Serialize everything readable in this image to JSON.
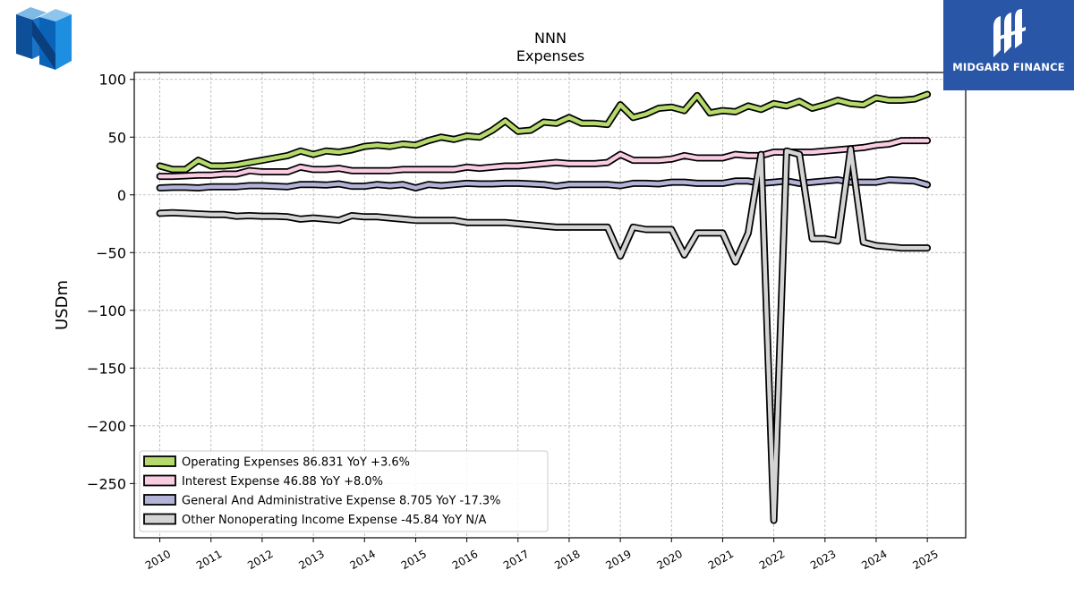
{
  "logos": {
    "left": {
      "icon": "nnn-cube-logo-icon"
    },
    "right": {
      "text": "MIDGARD FINANCE",
      "icon": "midgard-emblem-icon",
      "background": "#2a56a8"
    }
  },
  "chart_data": {
    "type": "line",
    "title": "NNN",
    "subtitle": "Expenses",
    "xlabel": "",
    "ylabel": "USDm",
    "xlim": [
      2009.5,
      2025.75
    ],
    "ylim": [
      -297,
      106
    ],
    "x_ticks": [
      "2010",
      "2011",
      "2012",
      "2013",
      "2014",
      "2015",
      "2016",
      "2017",
      "2018",
      "2019",
      "2020",
      "2021",
      "2022",
      "2023",
      "2024",
      "2025"
    ],
    "y_ticks": [
      {
        "value": 100,
        "label": "100"
      },
      {
        "value": 50,
        "label": "50"
      },
      {
        "value": 0,
        "label": "0"
      },
      {
        "value": -50,
        "label": "−50"
      },
      {
        "value": -100,
        "label": "−100"
      },
      {
        "value": -150,
        "label": "−150"
      },
      {
        "value": -200,
        "label": "−200"
      },
      {
        "value": -250,
        "label": "−250"
      }
    ],
    "grid": true,
    "legend_position": "lower-left",
    "series": [
      {
        "name": "Operating Expenses  86.831 YoY +3.6%",
        "color": "#b5d96b",
        "points": [
          [
            2010.0,
            25
          ],
          [
            2010.25,
            22
          ],
          [
            2010.5,
            22
          ],
          [
            2010.75,
            30
          ],
          [
            2011.0,
            25
          ],
          [
            2011.25,
            25
          ],
          [
            2011.5,
            26
          ],
          [
            2011.75,
            28
          ],
          [
            2012.0,
            30
          ],
          [
            2012.25,
            32
          ],
          [
            2012.5,
            34
          ],
          [
            2012.75,
            38
          ],
          [
            2013.0,
            35
          ],
          [
            2013.25,
            38
          ],
          [
            2013.5,
            37
          ],
          [
            2013.75,
            39
          ],
          [
            2014.0,
            42
          ],
          [
            2014.25,
            43
          ],
          [
            2014.5,
            42
          ],
          [
            2014.75,
            44
          ],
          [
            2015.0,
            43
          ],
          [
            2015.25,
            47
          ],
          [
            2015.5,
            50
          ],
          [
            2015.75,
            48
          ],
          [
            2016.0,
            51
          ],
          [
            2016.25,
            50
          ],
          [
            2016.5,
            56
          ],
          [
            2016.75,
            64
          ],
          [
            2017.0,
            55
          ],
          [
            2017.25,
            56
          ],
          [
            2017.5,
            63
          ],
          [
            2017.75,
            62
          ],
          [
            2018.0,
            67
          ],
          [
            2018.25,
            62
          ],
          [
            2018.5,
            62
          ],
          [
            2018.75,
            61
          ],
          [
            2019.0,
            78
          ],
          [
            2019.25,
            67
          ],
          [
            2019.5,
            70
          ],
          [
            2019.75,
            75
          ],
          [
            2020.0,
            76
          ],
          [
            2020.25,
            73
          ],
          [
            2020.5,
            86
          ],
          [
            2020.75,
            71
          ],
          [
            2021.0,
            73
          ],
          [
            2021.25,
            72
          ],
          [
            2021.5,
            77
          ],
          [
            2021.75,
            74
          ],
          [
            2022.0,
            79
          ],
          [
            2022.25,
            77
          ],
          [
            2022.5,
            81
          ],
          [
            2022.75,
            75
          ],
          [
            2023.0,
            78
          ],
          [
            2023.25,
            82
          ],
          [
            2023.5,
            79
          ],
          [
            2023.75,
            78
          ],
          [
            2024.0,
            84
          ],
          [
            2024.25,
            82
          ],
          [
            2024.5,
            82
          ],
          [
            2024.75,
            83
          ],
          [
            2025.0,
            87
          ]
        ]
      },
      {
        "name": "Interest Expense  46.88 YoY +8.0%",
        "color": "#f9cce2",
        "points": [
          [
            2010.0,
            16
          ],
          [
            2010.25,
            16
          ],
          [
            2010.5,
            16.5
          ],
          [
            2010.75,
            17
          ],
          [
            2011.0,
            17
          ],
          [
            2011.25,
            18
          ],
          [
            2011.5,
            18
          ],
          [
            2011.75,
            21
          ],
          [
            2012.0,
            20
          ],
          [
            2012.25,
            20
          ],
          [
            2012.5,
            20
          ],
          [
            2012.75,
            24
          ],
          [
            2013.0,
            22
          ],
          [
            2013.25,
            22
          ],
          [
            2013.5,
            23
          ],
          [
            2013.75,
            21
          ],
          [
            2014.0,
            21
          ],
          [
            2014.25,
            21
          ],
          [
            2014.5,
            21
          ],
          [
            2014.75,
            22
          ],
          [
            2015.0,
            22
          ],
          [
            2015.25,
            22
          ],
          [
            2015.5,
            22
          ],
          [
            2015.75,
            22
          ],
          [
            2016.0,
            24
          ],
          [
            2016.25,
            23
          ],
          [
            2016.5,
            24
          ],
          [
            2016.75,
            25
          ],
          [
            2017.0,
            25
          ],
          [
            2017.25,
            26
          ],
          [
            2017.5,
            27
          ],
          [
            2017.75,
            28
          ],
          [
            2018.0,
            27
          ],
          [
            2018.25,
            27
          ],
          [
            2018.5,
            27
          ],
          [
            2018.75,
            28
          ],
          [
            2019.0,
            35
          ],
          [
            2019.25,
            30
          ],
          [
            2019.5,
            30
          ],
          [
            2019.75,
            30
          ],
          [
            2020.0,
            31
          ],
          [
            2020.25,
            34
          ],
          [
            2020.5,
            32
          ],
          [
            2020.75,
            32
          ],
          [
            2021.0,
            32
          ],
          [
            2021.25,
            35
          ],
          [
            2021.5,
            34
          ],
          [
            2021.75,
            34
          ],
          [
            2022.0,
            37
          ],
          [
            2022.25,
            37
          ],
          [
            2022.5,
            37
          ],
          [
            2022.75,
            37
          ],
          [
            2023.0,
            38
          ],
          [
            2023.25,
            39
          ],
          [
            2023.5,
            40
          ],
          [
            2023.75,
            41
          ],
          [
            2024.0,
            43
          ],
          [
            2024.25,
            44
          ],
          [
            2024.5,
            47
          ],
          [
            2024.75,
            47
          ],
          [
            2025.0,
            47
          ]
        ]
      },
      {
        "name": "General And Administrative Expense  8.705 YoY -17.3%",
        "color": "#b3b3d8",
        "points": [
          [
            2010.0,
            6
          ],
          [
            2010.25,
            6.5
          ],
          [
            2010.5,
            6.5
          ],
          [
            2010.75,
            6
          ],
          [
            2011.0,
            7
          ],
          [
            2011.25,
            7
          ],
          [
            2011.5,
            7
          ],
          [
            2011.75,
            8
          ],
          [
            2012.0,
            8
          ],
          [
            2012.25,
            7.5
          ],
          [
            2012.5,
            7
          ],
          [
            2012.75,
            9
          ],
          [
            2013.0,
            9
          ],
          [
            2013.25,
            8.5
          ],
          [
            2013.5,
            9.5
          ],
          [
            2013.75,
            7.5
          ],
          [
            2014.0,
            7.5
          ],
          [
            2014.25,
            9
          ],
          [
            2014.5,
            8
          ],
          [
            2014.75,
            9
          ],
          [
            2015.0,
            6
          ],
          [
            2015.25,
            9
          ],
          [
            2015.5,
            8
          ],
          [
            2015.75,
            9
          ],
          [
            2016.0,
            10
          ],
          [
            2016.25,
            9.5
          ],
          [
            2016.5,
            9.5
          ],
          [
            2016.75,
            10
          ],
          [
            2017.0,
            10
          ],
          [
            2017.25,
            9.5
          ],
          [
            2017.5,
            9
          ],
          [
            2017.75,
            7.5
          ],
          [
            2018.0,
            9
          ],
          [
            2018.25,
            9
          ],
          [
            2018.5,
            9
          ],
          [
            2018.75,
            9
          ],
          [
            2019.0,
            8
          ],
          [
            2019.25,
            10
          ],
          [
            2019.5,
            10
          ],
          [
            2019.75,
            9.5
          ],
          [
            2020.0,
            11
          ],
          [
            2020.25,
            11
          ],
          [
            2020.5,
            10
          ],
          [
            2020.75,
            10
          ],
          [
            2021.0,
            10
          ],
          [
            2021.25,
            12
          ],
          [
            2021.5,
            12
          ],
          [
            2021.75,
            10
          ],
          [
            2022.0,
            11
          ],
          [
            2022.25,
            12
          ],
          [
            2022.5,
            10
          ],
          [
            2022.75,
            11
          ],
          [
            2023.0,
            12
          ],
          [
            2023.25,
            13
          ],
          [
            2023.5,
            11
          ],
          [
            2023.75,
            11
          ],
          [
            2024.0,
            11
          ],
          [
            2024.25,
            13
          ],
          [
            2024.5,
            12.5
          ],
          [
            2024.75,
            12
          ],
          [
            2025.0,
            8.7
          ]
        ]
      },
      {
        "name": "Other Nonoperating Income Expense  -45.84 YoY N/A",
        "color": "#d4d4d4",
        "points": [
          [
            2010.0,
            -16
          ],
          [
            2010.25,
            -15.5
          ],
          [
            2010.5,
            -16
          ],
          [
            2010.75,
            -16.5
          ],
          [
            2011.0,
            -17
          ],
          [
            2011.25,
            -17
          ],
          [
            2011.5,
            -18.5
          ],
          [
            2011.75,
            -18
          ],
          [
            2012.0,
            -18.5
          ],
          [
            2012.25,
            -18.5
          ],
          [
            2012.5,
            -19
          ],
          [
            2012.75,
            -21
          ],
          [
            2013.0,
            -20
          ],
          [
            2013.25,
            -21
          ],
          [
            2013.5,
            -22
          ],
          [
            2013.75,
            -18
          ],
          [
            2014.0,
            -19
          ],
          [
            2014.25,
            -19
          ],
          [
            2014.5,
            -20
          ],
          [
            2014.75,
            -21
          ],
          [
            2015.0,
            -22
          ],
          [
            2015.25,
            -22
          ],
          [
            2015.5,
            -22
          ],
          [
            2015.75,
            -22
          ],
          [
            2016.0,
            -24
          ],
          [
            2016.25,
            -24
          ],
          [
            2016.5,
            -24
          ],
          [
            2016.75,
            -24
          ],
          [
            2017.0,
            -25
          ],
          [
            2017.25,
            -26
          ],
          [
            2017.5,
            -27
          ],
          [
            2017.75,
            -28
          ],
          [
            2018.0,
            -28
          ],
          [
            2018.25,
            -28
          ],
          [
            2018.5,
            -28
          ],
          [
            2018.75,
            -28
          ],
          [
            2019.0,
            -53
          ],
          [
            2019.25,
            -28
          ],
          [
            2019.5,
            -30
          ],
          [
            2019.75,
            -30
          ],
          [
            2020.0,
            -30
          ],
          [
            2020.25,
            -52
          ],
          [
            2020.5,
            -33
          ],
          [
            2020.75,
            -33
          ],
          [
            2021.0,
            -33
          ],
          [
            2021.25,
            -58
          ],
          [
            2021.5,
            -33
          ],
          [
            2021.75,
            35
          ],
          [
            2022.0,
            -282
          ],
          [
            2022.25,
            38
          ],
          [
            2022.5,
            35
          ],
          [
            2022.75,
            -38
          ],
          [
            2023.0,
            -38
          ],
          [
            2023.25,
            -40
          ],
          [
            2023.5,
            40
          ],
          [
            2023.75,
            -41
          ],
          [
            2024.0,
            -44
          ],
          [
            2024.25,
            -45
          ],
          [
            2024.5,
            -46
          ],
          [
            2024.75,
            -46
          ],
          [
            2025.0,
            -46
          ]
        ]
      }
    ]
  }
}
